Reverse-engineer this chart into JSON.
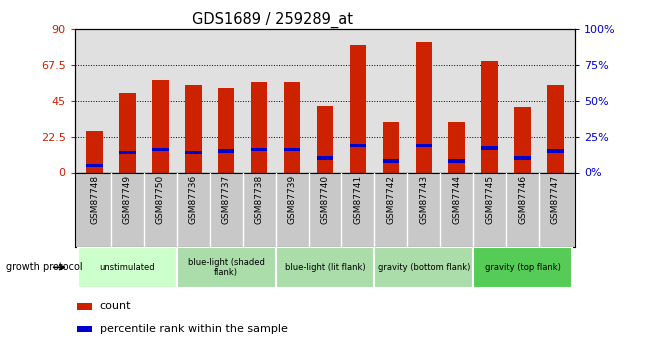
{
  "title": "GDS1689 / 259289_at",
  "samples": [
    "GSM87748",
    "GSM87749",
    "GSM87750",
    "GSM87736",
    "GSM87737",
    "GSM87738",
    "GSM87739",
    "GSM87740",
    "GSM87741",
    "GSM87742",
    "GSM87743",
    "GSM87744",
    "GSM87745",
    "GSM87746",
    "GSM87747"
  ],
  "counts": [
    26,
    50,
    58,
    55,
    53,
    57,
    57,
    42,
    80,
    32,
    82,
    32,
    70,
    41,
    55
  ],
  "percentile_ranks": [
    5,
    14,
    16,
    14,
    15,
    16,
    16,
    10,
    19,
    8,
    19,
    8,
    17,
    10,
    15
  ],
  "bar_color": "#cc2200",
  "pct_color": "#0000cc",
  "ylim_left": [
    0,
    90
  ],
  "ylim_right": [
    0,
    100
  ],
  "yticks_left": [
    0,
    22.5,
    45,
    67.5,
    90
  ],
  "yticks_right": [
    0,
    25,
    50,
    75,
    100
  ],
  "ytick_labels_left": [
    "0",
    "22.5",
    "45",
    "67.5",
    "90"
  ],
  "ytick_labels_right": [
    "0%",
    "25%",
    "50%",
    "75%",
    "100%"
  ],
  "groups": [
    {
      "label": "unstimulated",
      "indices": [
        0,
        1,
        2
      ],
      "color": "#ccffcc"
    },
    {
      "label": "blue-light (shaded\nflank)",
      "indices": [
        3,
        4,
        5
      ],
      "color": "#aaddaa"
    },
    {
      "label": "blue-light (lit flank)",
      "indices": [
        6,
        7,
        8
      ],
      "color": "#aaddaa"
    },
    {
      "label": "gravity (bottom flank)",
      "indices": [
        9,
        10,
        11
      ],
      "color": "#aaddaa"
    },
    {
      "label": "gravity (top flank)",
      "indices": [
        12,
        13,
        14
      ],
      "color": "#55cc55"
    }
  ],
  "growth_protocol_label": "growth protocol",
  "legend_count_label": "count",
  "legend_pct_label": "percentile rank within the sample",
  "plot_bg": "#e0e0e0",
  "xtick_bg": "#c8c8c8",
  "bar_width": 0.5
}
